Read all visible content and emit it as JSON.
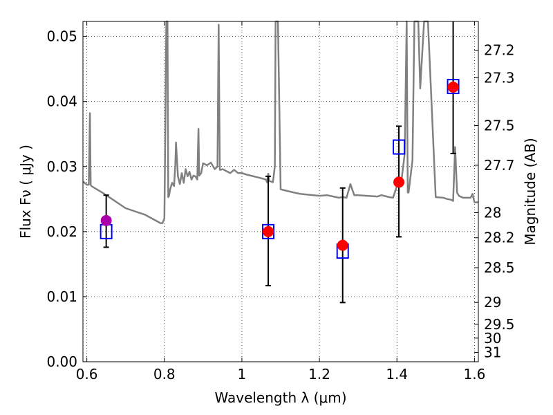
{
  "chart_data": {
    "type": "scatter",
    "title": "",
    "xlabel": "Wavelength  λ (μm)",
    "ylabel": "Flux  Fν ( μJy )",
    "ylabel_right": "Magnitude (AB)",
    "xlim": [
      0.59,
      1.61
    ],
    "ylim": [
      0.0,
      0.0523
    ],
    "x_ticks": [
      0.6,
      0.8,
      1.0,
      1.2,
      1.4,
      1.6
    ],
    "x_tick_labels": [
      "0.6",
      "0.8",
      "1",
      "1.2",
      "1.4",
      "1.6"
    ],
    "y_ticks": [
      0.0,
      0.01,
      0.02,
      0.03,
      0.04,
      0.05
    ],
    "y_tick_labels": [
      "0.00",
      "0.01",
      "0.02",
      "0.03",
      "0.04",
      "0.05"
    ],
    "right_ticks": [
      {
        "value": 27.2,
        "label": "27.2"
      },
      {
        "value": 27.3,
        "label": "27.3"
      },
      {
        "value": 27.5,
        "label": "27.5"
      },
      {
        "value": 27.7,
        "label": "27.7"
      },
      {
        "value": 28.0,
        "label": "28"
      },
      {
        "value": 28.2,
        "label": "28.2"
      },
      {
        "value": 28.5,
        "label": "28.5"
      },
      {
        "value": 29.0,
        "label": "29"
      },
      {
        "value": 29.5,
        "label": "29.5"
      },
      {
        "value": 30.0,
        "label": "30"
      },
      {
        "value": 31.0,
        "label": "31"
      }
    ],
    "grid": true,
    "colors": {
      "model": "#808080",
      "observed": "#ff0000",
      "observed_first": "#aa00aa",
      "model_box": "#0000ff",
      "errorbar": "#000000"
    },
    "model_spectrum": {
      "x": [
        0.59,
        0.6,
        0.605,
        0.608,
        0.61,
        0.612,
        0.62,
        0.64,
        0.66,
        0.7,
        0.75,
        0.79,
        0.795,
        0.8,
        0.803,
        0.805,
        0.806,
        0.808,
        0.81,
        0.812,
        0.815,
        0.82,
        0.825,
        0.828,
        0.83,
        0.835,
        0.84,
        0.845,
        0.85,
        0.855,
        0.86,
        0.865,
        0.87,
        0.875,
        0.88,
        0.885,
        0.888,
        0.89,
        0.895,
        0.9,
        0.91,
        0.92,
        0.93,
        0.937,
        0.94,
        0.943,
        0.946,
        0.95,
        0.97,
        0.98,
        0.99,
        1.0,
        1.01,
        1.03,
        1.05,
        1.062,
        1.065,
        1.068,
        1.07,
        1.08,
        1.085,
        1.087,
        1.09,
        1.093,
        1.1,
        1.12,
        1.15,
        1.2,
        1.22,
        1.25,
        1.26,
        1.27,
        1.28,
        1.29,
        1.3,
        1.35,
        1.36,
        1.38,
        1.39,
        1.4,
        1.41,
        1.42,
        1.425,
        1.428,
        1.43,
        1.435,
        1.44,
        1.445,
        1.45,
        1.455,
        1.46,
        1.47,
        1.48,
        1.5,
        1.52,
        1.53,
        1.54,
        1.545,
        1.55,
        1.555,
        1.56,
        1.57,
        1.59,
        1.595,
        1.6,
        1.61
      ],
      "y": [
        0.0277,
        0.0272,
        0.0272,
        0.0382,
        0.0272,
        0.027,
        0.0267,
        0.026,
        0.0252,
        0.0236,
        0.0226,
        0.0213,
        0.0213,
        0.022,
        0.038,
        0.0523,
        0.0523,
        0.0523,
        0.0253,
        0.0255,
        0.0265,
        0.0275,
        0.027,
        0.03,
        0.0337,
        0.0285,
        0.0273,
        0.029,
        0.0275,
        0.0296,
        0.0285,
        0.0292,
        0.028,
        0.0286,
        0.0285,
        0.028,
        0.0358,
        0.0286,
        0.029,
        0.0305,
        0.0302,
        0.0306,
        0.0296,
        0.03,
        0.0518,
        0.0295,
        0.0295,
        0.0296,
        0.029,
        0.0295,
        0.029,
        0.029,
        0.0288,
        0.0285,
        0.0282,
        0.028,
        0.0276,
        0.0289,
        0.0278,
        0.0276,
        0.03,
        0.0523,
        0.0523,
        0.0523,
        0.0265,
        0.0262,
        0.0258,
        0.0255,
        0.0256,
        0.0252,
        0.0253,
        0.0252,
        0.0273,
        0.0256,
        0.0256,
        0.0254,
        0.0256,
        0.0253,
        0.0252,
        0.027,
        0.027,
        0.032,
        0.0523,
        0.026,
        0.026,
        0.0285,
        0.031,
        0.0523,
        0.0523,
        0.0523,
        0.042,
        0.0523,
        0.0523,
        0.0253,
        0.0252,
        0.025,
        0.0249,
        0.0247,
        0.033,
        0.026,
        0.0255,
        0.0252,
        0.0252,
        0.0258,
        0.0245,
        0.0245
      ]
    },
    "observed": [
      {
        "x": 0.65,
        "y": 0.0217,
        "yerr_low": 0.0176,
        "yerr_high": 0.0256
      },
      {
        "x": 1.068,
        "y": 0.02,
        "yerr_low": 0.0117,
        "yerr_high": 0.0285
      },
      {
        "x": 1.26,
        "y": 0.0179,
        "yerr_low": 0.0091,
        "yerr_high": 0.0267
      },
      {
        "x": 1.405,
        "y": 0.0276,
        "yerr_low": 0.0192,
        "yerr_high": 0.0362
      },
      {
        "x": 1.545,
        "y": 0.0422,
        "yerr_low": 0.032,
        "yerr_high": 0.0523
      }
    ],
    "model_boxes": [
      {
        "x": 0.65,
        "y": 0.02
      },
      {
        "x": 1.068,
        "y": 0.02
      },
      {
        "x": 1.26,
        "y": 0.017
      },
      {
        "x": 1.405,
        "y": 0.033
      },
      {
        "x": 1.545,
        "y": 0.0423
      }
    ]
  }
}
